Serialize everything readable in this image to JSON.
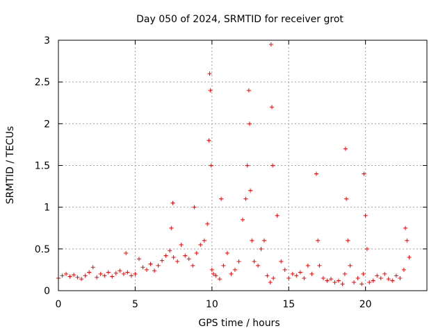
{
  "chart_data": {
    "type": "scatter",
    "title": "Day 050 of 2024, SRMTID for receiver grot",
    "xlabel": "GPS time / hours",
    "ylabel": "SRMTID / TECUs",
    "xlim": [
      0,
      24
    ],
    "ylim": [
      0,
      3
    ],
    "xticks": [
      0,
      5,
      10,
      15,
      20
    ],
    "yticks": [
      0,
      0.5,
      1,
      1.5,
      2,
      2.5,
      3
    ],
    "xtick_labels": [
      "0",
      "5",
      "10",
      "15",
      "20"
    ],
    "ytick_labels": [
      "0",
      "0.5",
      "1",
      "1.5",
      "2",
      "2.5",
      "3"
    ],
    "grid": true,
    "marker": "+",
    "color": "#ff0000",
    "series": [
      {
        "name": "SRMTID",
        "x": [
          0.0,
          0.25,
          0.5,
          0.75,
          1.0,
          1.25,
          1.5,
          1.75,
          2.0,
          2.25,
          2.5,
          2.75,
          3.0,
          3.25,
          3.5,
          3.75,
          4.0,
          4.25,
          4.4,
          4.5,
          4.75,
          5.0,
          5.25,
          5.5,
          5.75,
          6.0,
          6.25,
          6.5,
          6.75,
          7.0,
          7.25,
          7.35,
          7.45,
          7.5,
          7.75,
          8.0,
          8.25,
          8.5,
          8.75,
          8.85,
          9.0,
          9.25,
          9.5,
          9.7,
          9.8,
          9.85,
          9.9,
          9.95,
          10.0,
          10.1,
          10.25,
          10.5,
          10.6,
          10.75,
          11.0,
          11.25,
          11.5,
          11.75,
          12.0,
          12.2,
          12.3,
          12.4,
          12.45,
          12.5,
          12.6,
          12.75,
          13.0,
          13.2,
          13.4,
          13.6,
          13.8,
          13.85,
          13.9,
          13.95,
          14.0,
          14.25,
          14.5,
          14.75,
          15.0,
          15.25,
          15.5,
          15.75,
          16.0,
          16.25,
          16.5,
          16.8,
          16.9,
          17.0,
          17.25,
          17.5,
          17.75,
          18.0,
          18.25,
          18.5,
          18.65,
          18.7,
          18.75,
          18.85,
          19.0,
          19.25,
          19.5,
          19.75,
          19.85,
          19.9,
          20.0,
          20.1,
          20.25,
          20.5,
          20.75,
          21.0,
          21.25,
          21.5,
          21.75,
          22.0,
          22.25,
          22.5,
          22.6,
          22.7,
          22.85
        ],
        "y": [
          0.15,
          0.18,
          0.2,
          0.17,
          0.19,
          0.16,
          0.14,
          0.18,
          0.22,
          0.28,
          0.16,
          0.2,
          0.18,
          0.22,
          0.17,
          0.21,
          0.24,
          0.2,
          0.45,
          0.22,
          0.18,
          0.2,
          0.38,
          0.28,
          0.25,
          0.32,
          0.24,
          0.3,
          0.36,
          0.42,
          0.48,
          0.75,
          1.05,
          0.4,
          0.35,
          0.55,
          0.42,
          0.38,
          0.3,
          1.0,
          0.45,
          0.55,
          0.6,
          0.8,
          1.8,
          2.6,
          2.4,
          1.5,
          0.25,
          0.2,
          0.18,
          0.14,
          1.1,
          0.3,
          0.45,
          0.2,
          0.25,
          0.35,
          0.85,
          1.1,
          1.5,
          2.4,
          2.0,
          1.2,
          0.6,
          0.35,
          0.3,
          0.5,
          0.6,
          0.18,
          0.1,
          2.95,
          2.2,
          1.5,
          0.15,
          0.9,
          0.35,
          0.25,
          0.15,
          0.2,
          0.18,
          0.22,
          0.15,
          0.3,
          0.2,
          1.4,
          0.6,
          0.3,
          0.15,
          0.12,
          0.14,
          0.1,
          0.12,
          0.08,
          0.2,
          1.7,
          1.1,
          0.6,
          0.3,
          0.1,
          0.15,
          0.08,
          0.2,
          1.4,
          0.9,
          0.5,
          0.1,
          0.12,
          0.18,
          0.15,
          0.2,
          0.14,
          0.12,
          0.18,
          0.15,
          0.25,
          0.75,
          0.6,
          0.4
        ]
      }
    ]
  }
}
